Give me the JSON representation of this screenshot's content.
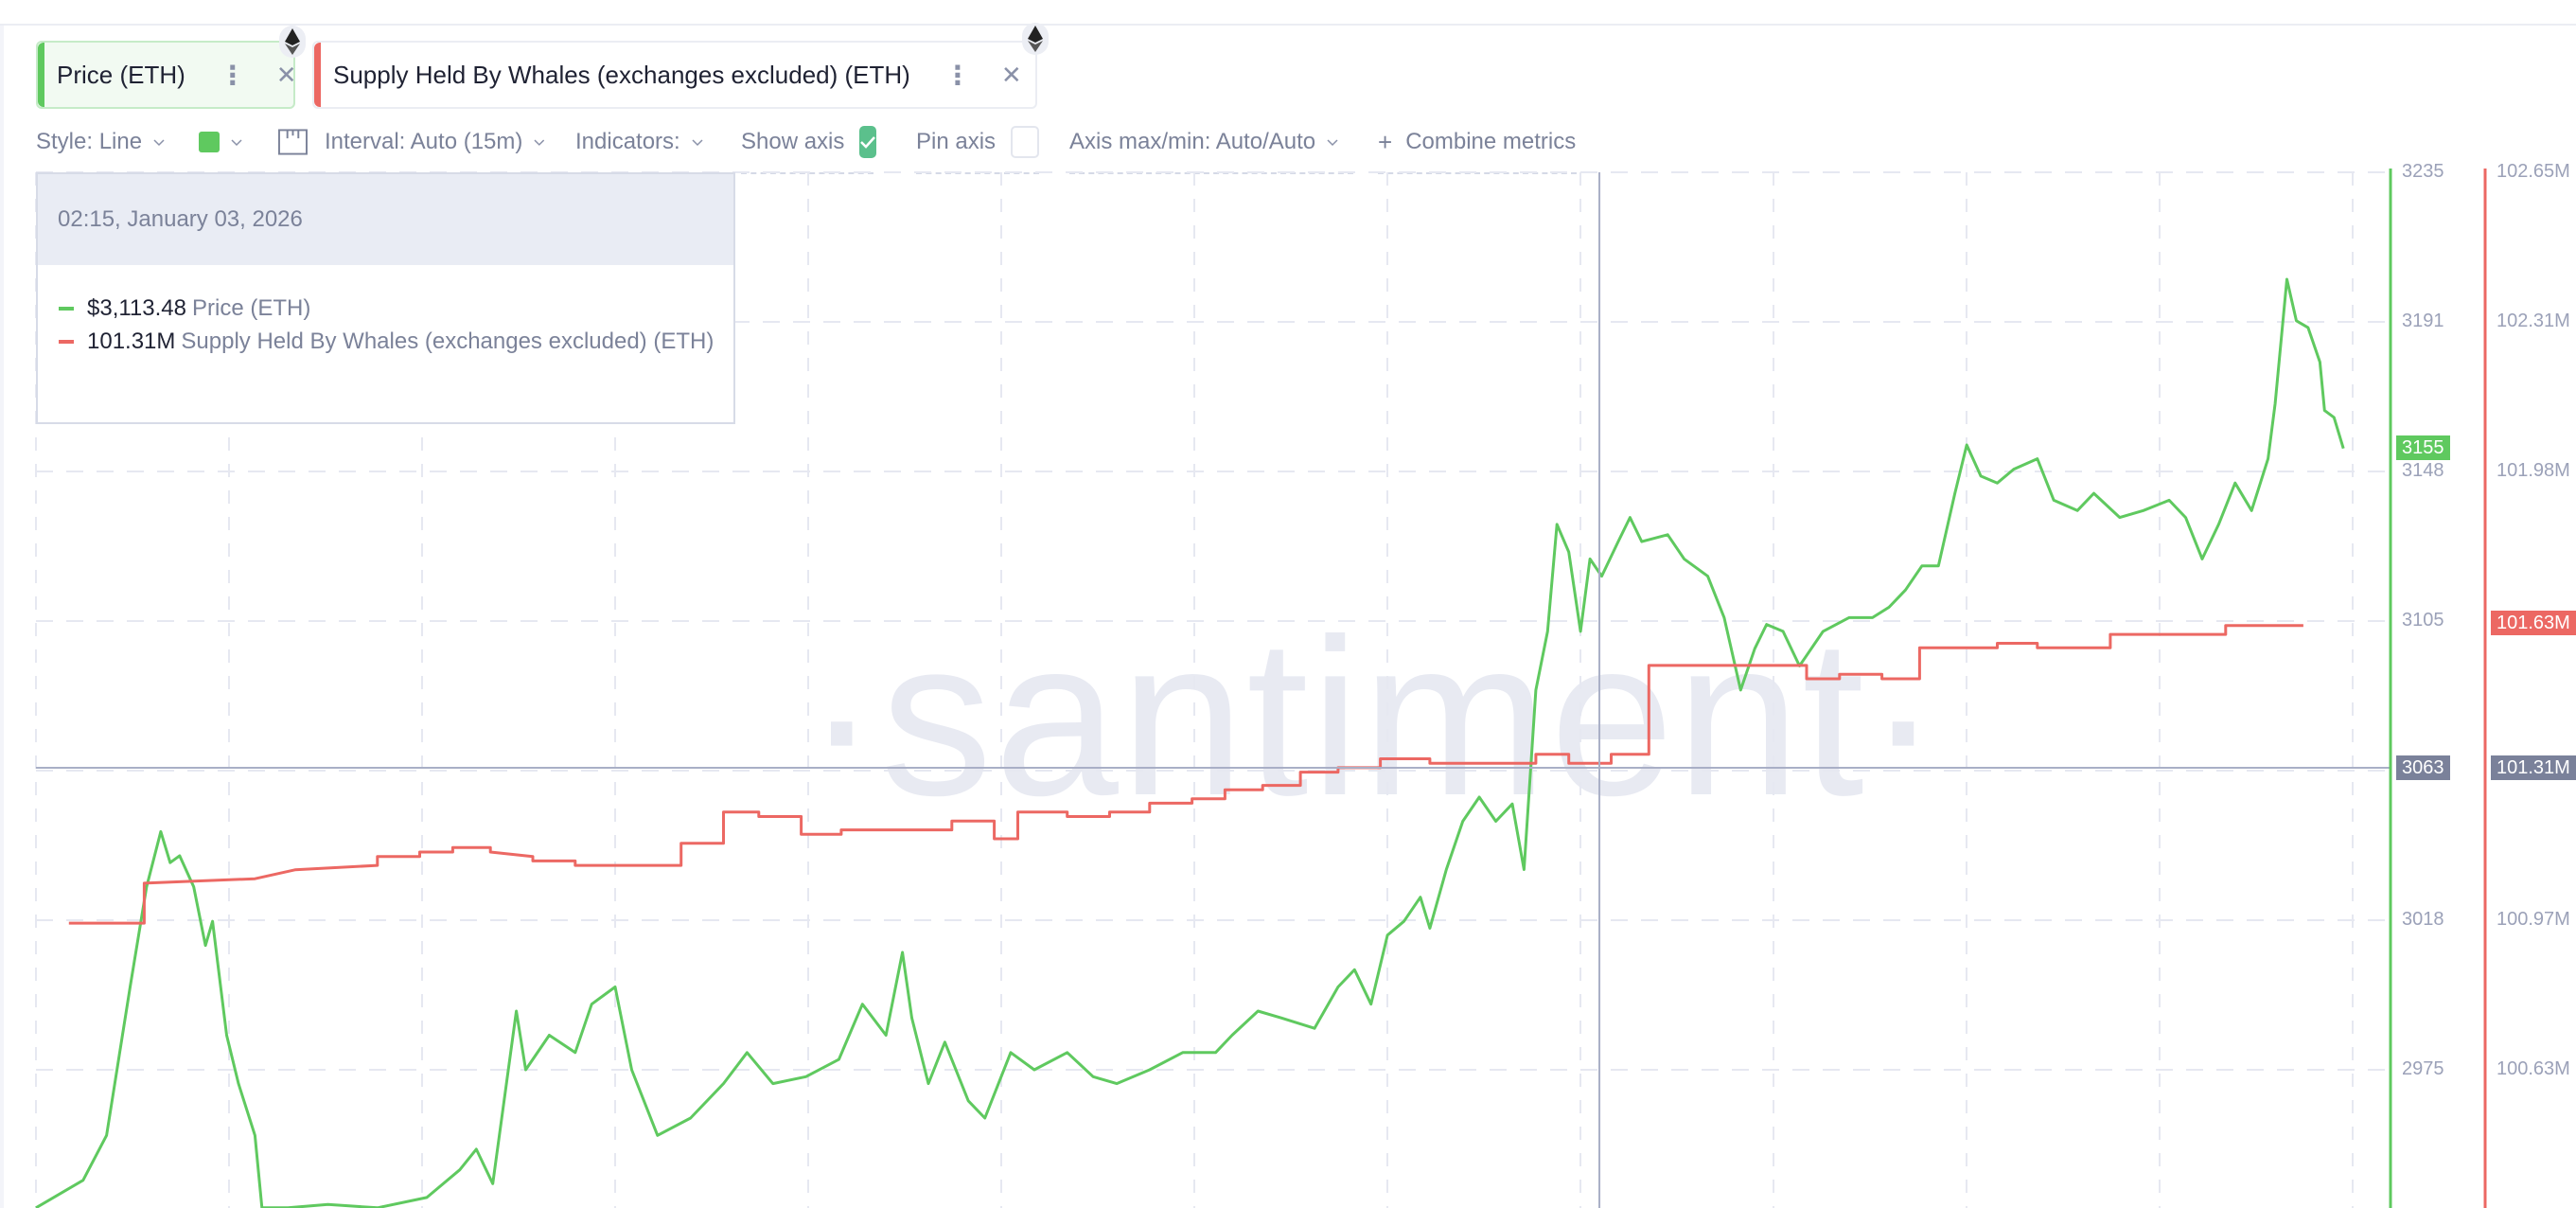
{
  "metrics": [
    {
      "label": "Price (ETH)",
      "color": "#5fc95f",
      "menu_icon": "vertical-dots-icon",
      "close_icon": "close-icon",
      "asset_icon": "ethereum-icon"
    },
    {
      "label": "Supply Held By Whales (exchanges excluded) (ETH)",
      "color": "#ec6863",
      "menu_icon": "vertical-dots-icon",
      "close_icon": "close-icon",
      "asset_icon": "ethereum-icon"
    }
  ],
  "toolbar": {
    "style": "Style: Line",
    "color_swatch": "#5fc95f",
    "interval": "Interval: Auto (15m)",
    "indicators": "Indicators:",
    "show_axis": "Show axis",
    "show_axis_checked": true,
    "pin_axis": "Pin axis",
    "pin_axis_checked": false,
    "axis_maxmin": "Axis max/min: Auto/Auto",
    "combine": "Combine metrics",
    "combine_icon": "+"
  },
  "tooltip": {
    "datetime": "02:15, January 03, 2026",
    "rows": [
      {
        "value": "$3,113.48",
        "name": "Price (ETH)",
        "color": "#5fc95f"
      },
      {
        "value": "101.31M",
        "name": "Supply Held By Whales (exchanges excluded) (ETH)",
        "color": "#ec6863"
      }
    ]
  },
  "watermark": "·santiment·",
  "axes": {
    "price": {
      "ticks": [
        "3235",
        "3191",
        "3148",
        "3105",
        "3063",
        "3018",
        "2975"
      ],
      "current_badge": "3155",
      "crosshair_badge": "3063",
      "color": "#5fc95f"
    },
    "supply": {
      "ticks": [
        "102.65M",
        "102.31M",
        "101.98M",
        "101.63M",
        "101.31M",
        "100.97M",
        "100.63M"
      ],
      "current_badge": "101.63M",
      "crosshair_badge": "101.31M",
      "color": "#ec6863"
    }
  },
  "chart_data": {
    "type": "line",
    "title": "",
    "xlabel": "",
    "ylabel": "",
    "x_unit": "relative time position (% of visible range)",
    "grid": true,
    "crosshair": {
      "x": 66.4,
      "label": "02:15, January 03, 2026"
    },
    "series": [
      {
        "name": "Price (ETH)",
        "axis": "left-inner",
        "color": "#5fc95f",
        "ylim": [
          2975,
          3235
        ],
        "x": [
          0,
          2.0,
          3.0,
          4.0,
          4.7,
          5.3,
          5.7,
          6.1,
          6.7,
          7.2,
          7.5,
          8.1,
          8.6,
          9.3,
          9.6,
          10.7,
          12.4,
          14.5,
          16.6,
          18.0,
          18.7,
          19.4,
          20.4,
          20.8,
          21.8,
          22.9,
          23.6,
          24.6,
          25.3,
          26.4,
          27.8,
          29.2,
          30.2,
          31.3,
          32.7,
          34.1,
          35.1,
          36.1,
          36.8,
          37.2,
          37.9,
          38.6,
          39.6,
          40.3,
          41.4,
          42.4,
          43.8,
          44.9,
          45.9,
          47.3,
          48.7,
          50.1,
          50.8,
          51.9,
          52.9,
          54.3,
          55.3,
          56.0,
          56.7,
          57.4,
          58.1,
          58.8,
          59.2,
          59.9,
          60.6,
          61.3,
          62.0,
          62.7,
          63.2,
          63.7,
          64.2,
          64.6,
          65.1,
          65.6,
          66.0,
          66.5,
          67.2,
          67.7,
          68.2,
          69.3,
          70.0,
          71.0,
          71.7,
          72.4,
          73.0,
          73.5,
          74.2,
          74.9,
          75.9,
          77.0,
          78.0,
          78.7,
          79.4,
          80.1,
          80.8,
          81.5,
          82.0,
          82.6,
          83.3,
          84.0,
          85.0,
          85.7,
          86.7,
          87.4,
          88.5,
          89.5,
          90.6,
          91.3,
          92.0,
          92.7,
          93.4,
          94.1,
          94.8,
          95.1,
          95.6,
          96.0,
          96.5,
          97.0,
          97.2,
          97.6,
          98.0
        ],
        "values": [
          2935,
          2943,
          2956,
          2999,
          3028,
          3044,
          3035,
          3037,
          3028,
          3011,
          3018,
          2985,
          2971,
          2956,
          2935,
          2935,
          2936,
          2935,
          2938,
          2946,
          2952,
          2942,
          2992,
          2975,
          2985,
          2980,
          2994,
          2999,
          2975,
          2956,
          2961,
          2971,
          2980,
          2971,
          2973,
          2978,
          2994,
          2985,
          3009,
          2990,
          2971,
          2983,
          2966,
          2961,
          2980,
          2975,
          2980,
          2973,
          2971,
          2975,
          2980,
          2980,
          2985,
          2992,
          2990,
          2987,
          2999,
          3004,
          2994,
          3014,
          3018,
          3025,
          3016,
          3033,
          3047,
          3054,
          3047,
          3052,
          3033,
          3085,
          3102,
          3133,
          3125,
          3102,
          3123,
          3118,
          3128,
          3135,
          3128,
          3130,
          3123,
          3118,
          3106,
          3085,
          3097,
          3104,
          3102,
          3092,
          3102,
          3106,
          3106,
          3109,
          3114,
          3121,
          3121,
          3142,
          3156,
          3147,
          3145,
          3149,
          3152,
          3140,
          3137,
          3142,
          3135,
          3137,
          3140,
          3135,
          3123,
          3133,
          3145,
          3137,
          3152,
          3168,
          3204,
          3192,
          3190,
          3180,
          3166,
          3164,
          3155
        ]
      },
      {
        "name": "Supply Held By Whales (exchanges excluded) (ETH)",
        "axis": "right",
        "color": "#ec6863",
        "ylim": [
          100.63,
          102.65
        ],
        "unit": "M",
        "x": [
          1.4,
          4.6,
          4.6,
          9.3,
          11.0,
          14.5,
          14.5,
          16.3,
          16.3,
          17.7,
          17.7,
          19.3,
          19.3,
          21.1,
          21.1,
          22.9,
          22.9,
          27.4,
          27.4,
          29.2,
          29.2,
          30.7,
          30.7,
          32.5,
          32.5,
          34.2,
          34.2,
          38.9,
          38.9,
          40.7,
          40.7,
          41.7,
          41.7,
          43.8,
          43.8,
          45.6,
          45.6,
          47.3,
          47.3,
          49.1,
          49.1,
          50.5,
          50.5,
          52.1,
          52.1,
          53.7,
          53.7,
          55.3,
          55.3,
          57.1,
          57.1,
          59.2,
          59.2,
          63.7,
          63.7,
          65.1,
          65.1,
          66.9,
          66.9,
          68.5,
          68.5,
          75.2,
          75.2,
          76.6,
          76.6,
          78.4,
          78.4,
          80.0,
          80.0,
          83.3,
          83.3,
          85.0,
          85.0,
          88.1,
          88.1,
          93.0,
          93.0,
          96.3
        ],
        "values": [
          100.96,
          100.96,
          101.05,
          101.06,
          101.08,
          101.09,
          101.11,
          101.11,
          101.12,
          101.12,
          101.13,
          101.13,
          101.12,
          101.11,
          101.1,
          101.1,
          101.09,
          101.09,
          101.14,
          101.14,
          101.21,
          101.21,
          101.2,
          101.2,
          101.16,
          101.16,
          101.17,
          101.17,
          101.19,
          101.19,
          101.15,
          101.15,
          101.21,
          101.21,
          101.2,
          101.2,
          101.21,
          101.21,
          101.23,
          101.23,
          101.24,
          101.24,
          101.26,
          101.26,
          101.27,
          101.27,
          101.3,
          101.3,
          101.31,
          101.31,
          101.33,
          101.33,
          101.32,
          101.32,
          101.34,
          101.34,
          101.32,
          101.32,
          101.34,
          101.34,
          101.54,
          101.54,
          101.51,
          101.51,
          101.52,
          101.52,
          101.51,
          101.51,
          101.58,
          101.58,
          101.59,
          101.59,
          101.58,
          101.58,
          101.61,
          101.61,
          101.63,
          101.63
        ]
      }
    ]
  }
}
